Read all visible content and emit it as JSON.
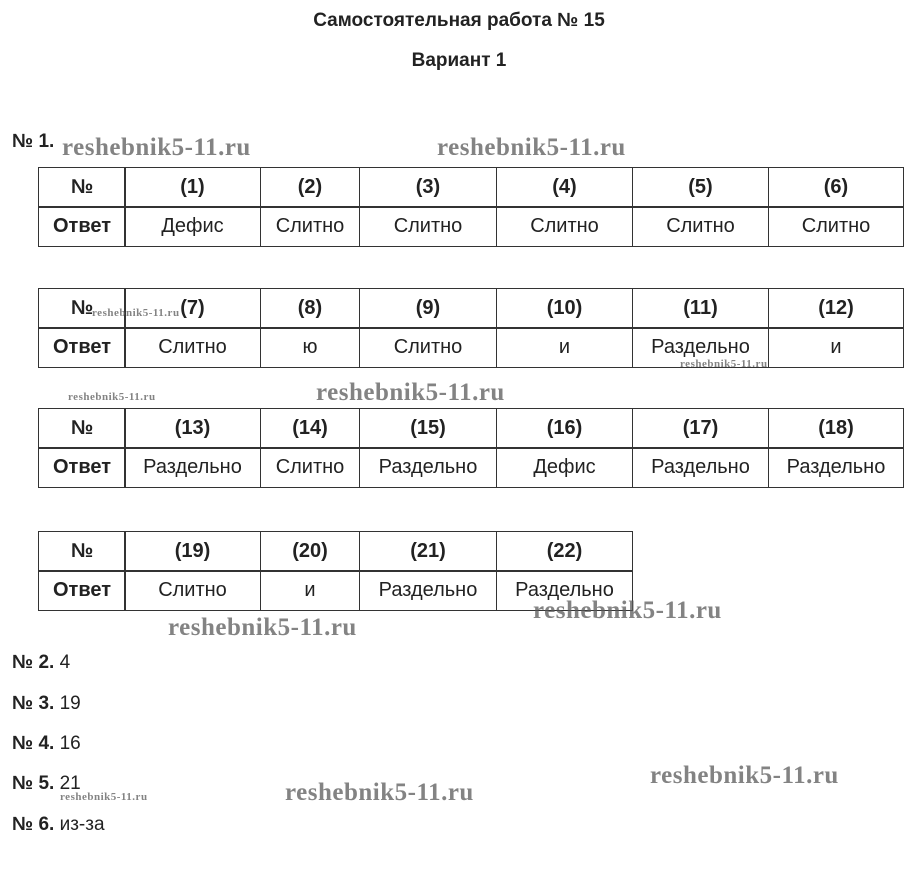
{
  "header": {
    "title": "Самостоятельная работа № 15",
    "subtitle": "Вариант 1"
  },
  "task1": {
    "label": "№ 1.",
    "tables": [
      {
        "header": [
          "№",
          "(1)",
          "(2)",
          "(3)",
          "(4)",
          "(5)",
          "(6)"
        ],
        "answers": [
          "Ответ",
          "Дефис",
          "Слитно",
          "Слитно",
          "Слитно",
          "Слитно",
          "Слитно"
        ]
      },
      {
        "header": [
          "№",
          "(7)",
          "(8)",
          "(9)",
          "(10)",
          "(11)",
          "(12)"
        ],
        "answers": [
          "Ответ",
          "Слитно",
          "ю",
          "Слитно",
          "и",
          "Раздельно",
          "и"
        ]
      },
      {
        "header": [
          "№",
          "(13)",
          "(14)",
          "(15)",
          "(16)",
          "(17)",
          "(18)"
        ],
        "answers": [
          "Ответ",
          "Раздельно",
          "Слитно",
          "Раздельно",
          "Дефис",
          "Раздельно",
          "Раздельно"
        ]
      },
      {
        "header": [
          "№",
          "(19)",
          "(20)",
          "(21)",
          "(22)"
        ],
        "answers": [
          "Ответ",
          "Слитно",
          "и",
          "Раздельно",
          "Раздельно"
        ]
      }
    ]
  },
  "tasks": [
    {
      "label": "№ 2.",
      "answer": "4"
    },
    {
      "label": "№ 3.",
      "answer": "19"
    },
    {
      "label": "№ 4.",
      "answer": "16"
    },
    {
      "label": "№ 5.",
      "answer": "21"
    },
    {
      "label": "№ 6.",
      "answer": "из-за"
    }
  ],
  "watermarks": [
    "reshebnik5-11.ru",
    "reshebnik5-11.ru",
    "reshebnik5-11.ru",
    "reshebnik5-11.ru",
    "reshebnik5-11.ru",
    "reshebnik5-11.ru",
    "reshebnik5-11.ru",
    "reshebnik5-11.ru",
    "reshebnik5-11.ru",
    "reshebnik5-11.ru",
    "reshebnik5-11.ru"
  ]
}
